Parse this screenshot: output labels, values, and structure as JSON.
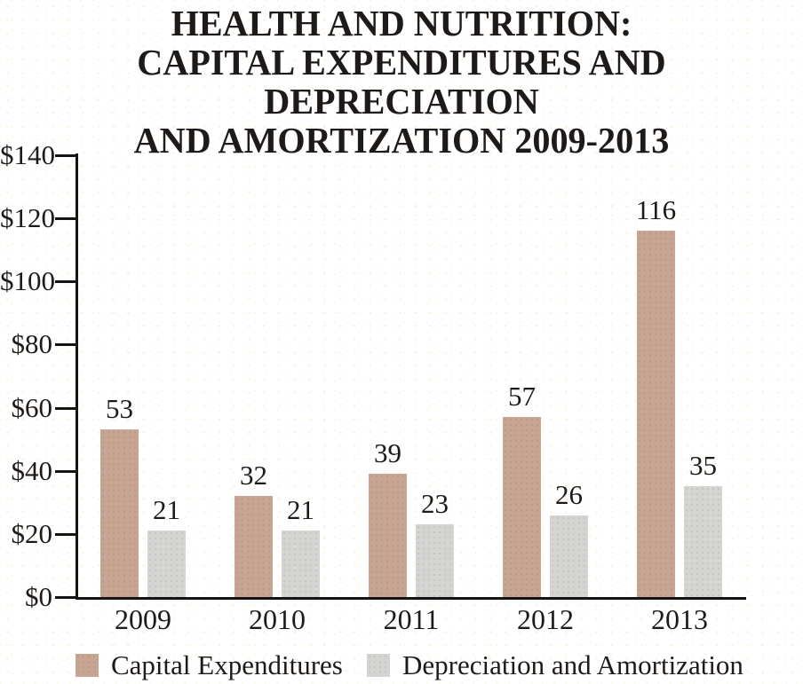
{
  "chart_data": {
    "type": "bar",
    "title": "HEALTH AND NUTRITION: CAPITAL EXPENDITURES AND DEPRECIATION AND AMORTIZATION 2009-2013",
    "title_lines": [
      "HEALTH AND NUTRITION:",
      "CAPITAL EXPENDITURES AND DEPRECIATION",
      "AND AMORTIZATION 2009-2013"
    ],
    "categories": [
      "2009",
      "2010",
      "2011",
      "2012",
      "2013"
    ],
    "series": [
      {
        "name": "Capital Expenditures",
        "color": "#c7a592",
        "values": [
          53,
          32,
          39,
          57,
          116
        ]
      },
      {
        "name": "Depreciation and Amortization",
        "color": "#d4d5d3",
        "values": [
          21,
          21,
          23,
          26,
          35
        ]
      }
    ],
    "value_labels": [
      [
        "53",
        "32",
        "39",
        "57",
        "116"
      ],
      [
        "21",
        "21",
        "23",
        "26",
        "35"
      ]
    ],
    "ylim": [
      0,
      140
    ],
    "y_tick_step": 20,
    "y_tick_labels": [
      "$0",
      "$20",
      "$40",
      "$60",
      "$80",
      "$100",
      "$120",
      "$140"
    ],
    "xlabel": "",
    "ylabel": "",
    "grid": false,
    "legend_position": "bottom"
  }
}
